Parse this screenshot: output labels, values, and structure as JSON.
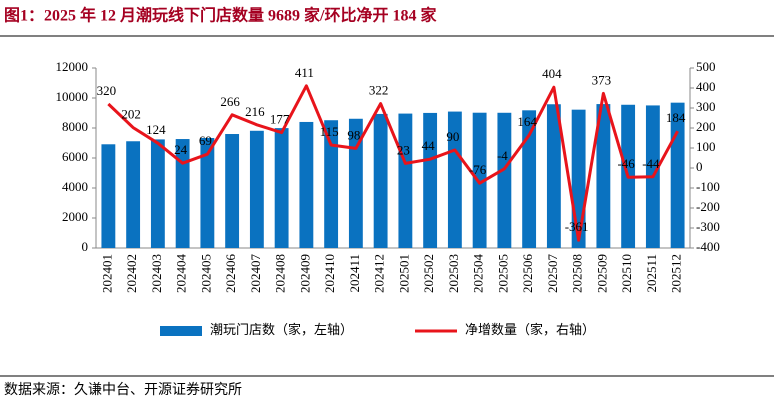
{
  "chart_data": {
    "type": "bar",
    "title": "图1：2025 年 12 月潮玩线下门店数量 9689 家/环比净开 184 家",
    "categories": [
      "202401",
      "202402",
      "202403",
      "202404",
      "202405",
      "202406",
      "202407",
      "202408",
      "202409",
      "202410",
      "202411",
      "202412",
      "202501",
      "202502",
      "202503",
      "202504",
      "202505",
      "202506",
      "202507",
      "202508",
      "202509",
      "202510",
      "202511",
      "202512"
    ],
    "series": [
      {
        "name": "潮玩门店数（家，左轴）",
        "type": "bar",
        "color": "#0a72c0",
        "values": [
          6914,
          7116,
          7240,
          7264,
          7333,
          7599,
          7815,
          7992,
          8403,
          8518,
          8616,
          8938,
          8961,
          9005,
          9095,
          9019,
          9015,
          9179,
          9583,
          9222,
          9595,
          9549,
          9505,
          9689
        ]
      },
      {
        "name": "净增数量（家，右轴）",
        "type": "line",
        "axis": "y2",
        "color": "#e8141b",
        "values": [
          320,
          202,
          124,
          24,
          69,
          266,
          216,
          177,
          411,
          115,
          98,
          322,
          23,
          44,
          90,
          -76,
          -4,
          164,
          404,
          -361,
          373,
          -46,
          -44,
          184
        ]
      }
    ],
    "ylim": [
      0,
      12000
    ],
    "yticks": [
      0,
      2000,
      4000,
      6000,
      8000,
      10000,
      12000
    ],
    "y2lim": [
      -400,
      500
    ],
    "y2ticks": [
      -400,
      -300,
      -200,
      -100,
      0,
      100,
      200,
      300,
      400,
      500
    ],
    "grid": false,
    "legend": "bottom"
  },
  "source": "数据来源：久谦中台、开源证券研究所"
}
